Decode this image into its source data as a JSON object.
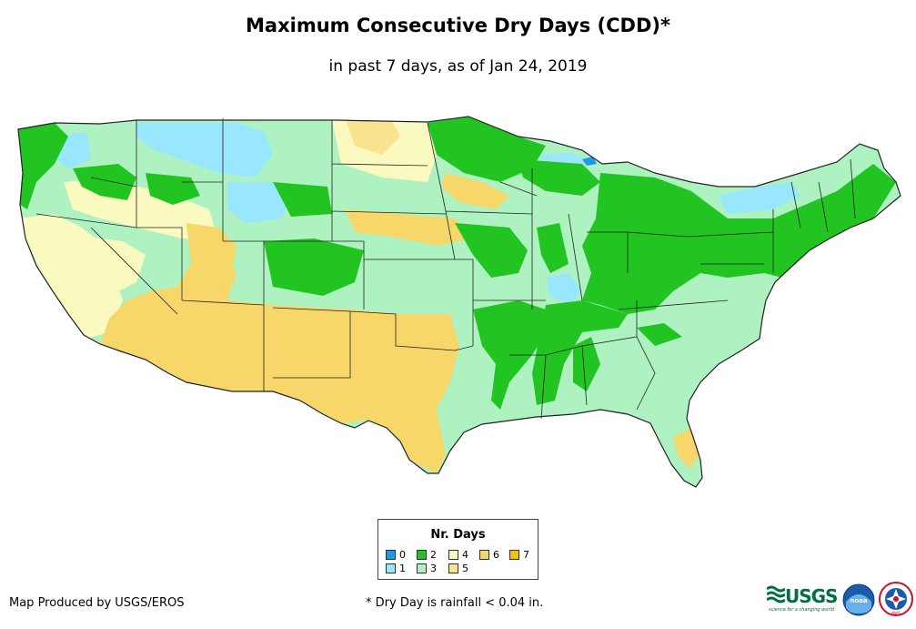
{
  "header": {
    "title": "Maximum Consecutive Dry Days (CDD)*",
    "subtitle": "in past 7 days, as of Jan 24, 2019"
  },
  "legend": {
    "title": "Nr. Days",
    "items": [
      {
        "label": "0",
        "color": "#1a9be8"
      },
      {
        "label": "1",
        "color": "#99e6ff"
      },
      {
        "label": "2",
        "color": "#22c422"
      },
      {
        "label": "3",
        "color": "#adf2c0"
      },
      {
        "label": "4",
        "color": "#fafac0"
      },
      {
        "label": "5",
        "color": "#fae38e"
      },
      {
        "label": "6",
        "color": "#f7d76a"
      },
      {
        "label": "7",
        "color": "#f5c400"
      }
    ]
  },
  "footer": {
    "credit": "Map Produced by USGS/EROS",
    "footnote": "* Dry Day is rainfall < 0.04 in."
  },
  "logos": {
    "usgs": "USGS",
    "usgs_tagline": "science for a changing world",
    "noaa": "noaa",
    "nws": "NWS"
  },
  "map": {
    "region": "conterminous-united-states",
    "outline_color": "#222222"
  }
}
